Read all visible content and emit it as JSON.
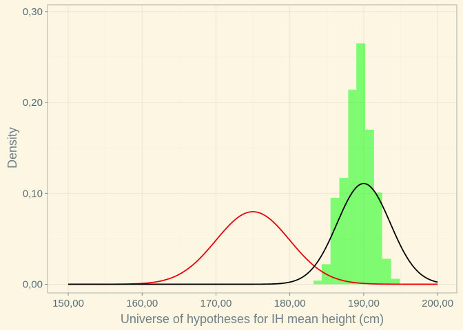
{
  "chart_data": {
    "type": "histogram+density",
    "title": "",
    "xlabel": "Universe of hypotheses for IH mean height (cm)",
    "ylabel": "Density",
    "xlim": [
      147.2,
      202.6
    ],
    "ylim": [
      -0.0095,
      0.3075
    ],
    "x_ticks": [
      150,
      160,
      170,
      180,
      190,
      200
    ],
    "x_tick_labels": [
      "150,00",
      "160,00",
      "170,00",
      "180,00",
      "190,00",
      "200,00"
    ],
    "y_ticks": [
      0,
      0.1,
      0.2,
      0.3
    ],
    "y_tick_labels": [
      "0,00",
      "0,10",
      "0,20",
      "0,30"
    ],
    "grid": true,
    "histogram": {
      "color": "#00ff00",
      "opacity": 0.5,
      "bin_width": 1.17,
      "bins": [
        {
          "x0": 183.2,
          "x1": 184.3,
          "density": 0.004
        },
        {
          "x0": 184.3,
          "x1": 185.5,
          "density": 0.022
        },
        {
          "x0": 185.5,
          "x1": 186.7,
          "density": 0.095
        },
        {
          "x0": 186.7,
          "x1": 187.9,
          "density": 0.117
        },
        {
          "x0": 187.9,
          "x1": 189.0,
          "density": 0.214
        },
        {
          "x0": 189.0,
          "x1": 190.2,
          "density": 0.265
        },
        {
          "x0": 190.2,
          "x1": 191.4,
          "density": 0.17
        },
        {
          "x0": 191.4,
          "x1": 192.5,
          "density": 0.101
        },
        {
          "x0": 192.5,
          "x1": 193.7,
          "density": 0.028
        },
        {
          "x0": 193.7,
          "x1": 194.9,
          "density": 0.006
        }
      ]
    },
    "series": [
      {
        "type": "density-line",
        "color": "#e8000b",
        "mean": 175,
        "sd": 5,
        "x_range": [
          150,
          200
        ]
      },
      {
        "type": "density-line",
        "color": "#000000",
        "mean": 190,
        "sd": 3.6,
        "x_range": [
          150,
          200
        ]
      }
    ]
  }
}
